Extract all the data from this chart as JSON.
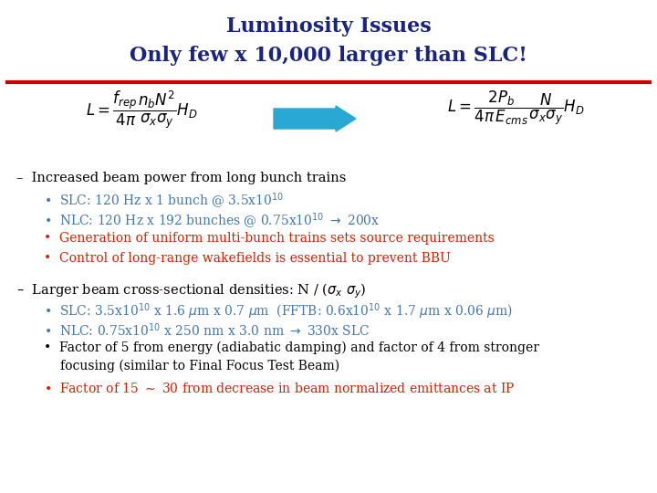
{
  "title_line1": "Luminosity Issues",
  "title_line2": "Only few x 10,000 larger than SLC!",
  "title_color": "#1a237e",
  "bg_color": "#ffffff",
  "red_line_color": "#cc0000",
  "arrow_color": "#29a8d4",
  "black": "#000000",
  "blue": "#4477aa",
  "red": "#cc2200",
  "formula_left": "$L = \\dfrac{f_{rep}}{4\\pi} \\dfrac{n_b N^2}{\\sigma_x \\sigma_y} H_D$",
  "formula_right": "$L = \\dfrac{2P_b}{4\\pi\\, E_{cms}} \\dfrac{N}{\\sigma_x \\sigma_y} H_D$",
  "s1_header": "–  Increased beam power from long bunch trains",
  "s1_b1": "SLC: 120 Hz x 1 bunch @ 3.5x10$^{10}$",
  "s1_b2": "NLC: 120 Hz x 192 bunches @ 0.75x10$^{10}$ $\\rightarrow$ 200x",
  "s1_b3": "Generation of uniform multi-bunch trains sets source requirements",
  "s1_b4": "Control of long-range wakefields is essential to prevent BBU",
  "s2_header": "–  Larger beam cross-sectional densities: N / ($\\sigma_x$ $\\sigma_y$)",
  "s2_b1": "SLC: 3.5x10$^{10}$ x 1.6 $\\mu$m x 0.7 $\\mu$m  (FFTB: 0.6x10$^{10}$ x 1.7 $\\mu$m x 0.06 $\\mu$m)",
  "s2_b2": "NLC: 0.75x10$^{10}$ x 250 nm x 3.0 nm $\\rightarrow$ 330x SLC",
  "s2_b3a": "Factor of 5 from energy (adiabatic damping) and factor of 4 from stronger",
  "s2_b3b": "focusing (similar to Final Focus Test Beam)",
  "s2_b4": "Factor of 15 $\\sim$ 30 from decrease in beam normalized emittances at IP"
}
